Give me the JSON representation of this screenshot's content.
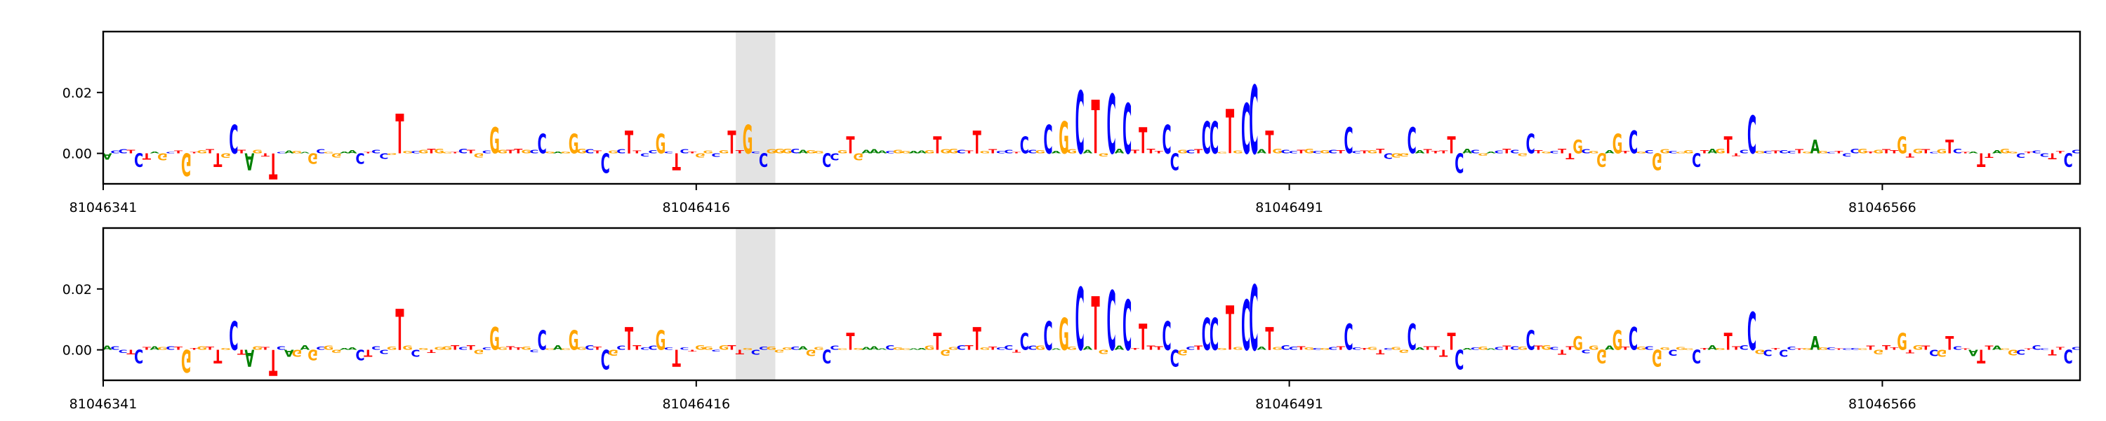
{
  "chart_data": [
    {
      "type": "sequence-logo",
      "ylim": [
        -0.01,
        0.04
      ],
      "yticks": [
        {
          "value": 0.02,
          "label": "0.02"
        },
        {
          "value": 0.0,
          "label": "0.00"
        }
      ],
      "xlim": [
        81046341,
        81046591
      ],
      "xticks": [
        {
          "value": 81046341,
          "label": "81046341"
        },
        {
          "value": 81046416,
          "label": "81046416"
        },
        {
          "value": 81046491,
          "label": "81046491"
        },
        {
          "value": 81046566,
          "label": "81046566"
        }
      ],
      "highlight": [
        81046421,
        81046426
      ],
      "sequence": "ACCTCTAGCTGTGTTGCTAGTTCAGAGCGGAACTCCGTGCGTGGTCTGCGGTTGCCGAGGGCTCGCTTCCGCTCTGGCGTTGCCGGGCAGGCCGTGAAACGGAAGTGGCTTGTCCTCCGCAGGCATGCACTTTTCCGCTCCGTGCCATGCCTGCGCTCCTGTCGGCATTTTCACGACTCGCTGCTTGCGGAGTCGCGGCGGCTAGTTCCGCTCCTGAGCTCCGTGTTGTGTCGTCTATTAGGCTCCTTCC",
      "features": [
        {
          "pos": 81046345,
          "height": -0.0045
        },
        {
          "pos": 81046351,
          "height": -0.0075
        },
        {
          "pos": 81046355,
          "height": -0.0045
        },
        {
          "pos": 81046357,
          "height": 0.0095
        },
        {
          "pos": 81046359,
          "height": -0.0055
        },
        {
          "pos": 81046362,
          "height": -0.0085
        },
        {
          "pos": 81046367,
          "height": -0.0035
        },
        {
          "pos": 81046373,
          "height": -0.0035
        },
        {
          "pos": 81046378,
          "height": 0.013
        },
        {
          "pos": 81046390,
          "height": 0.0085
        },
        {
          "pos": 81046396,
          "height": 0.0065
        },
        {
          "pos": 81046400,
          "height": 0.0065
        },
        {
          "pos": 81046404,
          "height": -0.0065
        },
        {
          "pos": 81046407,
          "height": 0.0075
        },
        {
          "pos": 81046411,
          "height": 0.0065
        },
        {
          "pos": 81046413,
          "height": -0.0055
        },
        {
          "pos": 81046420,
          "height": 0.0075
        },
        {
          "pos": 81046422,
          "height": 0.0095
        },
        {
          "pos": 81046424,
          "height": -0.0045
        },
        {
          "pos": 81046432,
          "height": -0.0045
        },
        {
          "pos": 81046435,
          "height": 0.0055
        },
        {
          "pos": 81046446,
          "height": 0.0055
        },
        {
          "pos": 81046451,
          "height": 0.0075
        },
        {
          "pos": 81046457,
          "height": 0.0055
        },
        {
          "pos": 81046460,
          "height": 0.0095
        },
        {
          "pos": 81046462,
          "height": 0.0105
        },
        {
          "pos": 81046464,
          "height": 0.0205
        },
        {
          "pos": 81046466,
          "height": 0.0175
        },
        {
          "pos": 81046468,
          "height": 0.0195
        },
        {
          "pos": 81046470,
          "height": 0.0165
        },
        {
          "pos": 81046472,
          "height": 0.0085
        },
        {
          "pos": 81046475,
          "height": 0.0095
        },
        {
          "pos": 81046476,
          "height": -0.0055
        },
        {
          "pos": 81046480,
          "height": 0.0105
        },
        {
          "pos": 81046481,
          "height": 0.0105
        },
        {
          "pos": 81046483,
          "height": 0.0145
        },
        {
          "pos": 81046485,
          "height": 0.0165
        },
        {
          "pos": 81046486,
          "height": 0.0225
        },
        {
          "pos": 81046488,
          "height": 0.0075
        },
        {
          "pos": 81046498,
          "height": 0.0085
        },
        {
          "pos": 81046506,
          "height": 0.0085
        },
        {
          "pos": 81046511,
          "height": 0.0055
        },
        {
          "pos": 81046512,
          "height": -0.0065
        },
        {
          "pos": 81046521,
          "height": 0.0065
        },
        {
          "pos": 81046527,
          "height": 0.0045
        },
        {
          "pos": 81046530,
          "height": -0.0045
        },
        {
          "pos": 81046532,
          "height": 0.0065
        },
        {
          "pos": 81046534,
          "height": 0.0075
        },
        {
          "pos": 81046537,
          "height": -0.0055
        },
        {
          "pos": 81046542,
          "height": -0.0045
        },
        {
          "pos": 81046546,
          "height": 0.0055
        },
        {
          "pos": 81046549,
          "height": 0.0125
        },
        {
          "pos": 81046557,
          "height": 0.0045
        },
        {
          "pos": 81046568,
          "height": 0.0055
        },
        {
          "pos": 81046574,
          "height": 0.0045
        },
        {
          "pos": 81046578,
          "height": -0.0045
        },
        {
          "pos": 81046589,
          "height": -0.0045
        }
      ]
    },
    {
      "type": "sequence-logo",
      "ylim": [
        -0.01,
        0.04
      ],
      "yticks": [
        {
          "value": 0.02,
          "label": "0.02"
        },
        {
          "value": 0.0,
          "label": "0.00"
        }
      ],
      "xlim": [
        81046341,
        81046591
      ],
      "xticks": [
        {
          "value": 81046341,
          "label": "81046341"
        },
        {
          "value": 81046416,
          "label": "81046416"
        },
        {
          "value": 81046491,
          "label": "81046491"
        },
        {
          "value": 81046566,
          "label": "81046566"
        }
      ],
      "highlight": [
        81046421,
        81046426
      ],
      "sequence": "ACCTCTAGCTGTGTTGCTAGTTCAGAGCGGAACTCCGTGCGTGGTCTGCGGTTGCCGAGGGCTCGCTTCCGCTCTGGCGTTGCCGGGCAGGCCGTGAAACGGAAGTGGCTTGTCCTCCGCAGGCATGCACTTTTCCGCTCCGTGCCATGCCTGCGCTCCTGTCGGCATTTTCACGACTCGCTGCTTGCGGAGTCGCGGCGGCTAGTTCCGCTCCTGAGCTCCGTGTTGTGTCGTCTATTAGGCTCCTTCC",
      "features": [
        {
          "pos": 81046345,
          "height": -0.0045
        },
        {
          "pos": 81046351,
          "height": -0.0075
        },
        {
          "pos": 81046355,
          "height": -0.0045
        },
        {
          "pos": 81046357,
          "height": 0.0095
        },
        {
          "pos": 81046359,
          "height": -0.0055
        },
        {
          "pos": 81046362,
          "height": -0.0085
        },
        {
          "pos": 81046367,
          "height": -0.0035
        },
        {
          "pos": 81046373,
          "height": -0.0035
        },
        {
          "pos": 81046378,
          "height": 0.0135
        },
        {
          "pos": 81046390,
          "height": 0.0075
        },
        {
          "pos": 81046396,
          "height": 0.0065
        },
        {
          "pos": 81046400,
          "height": 0.0065
        },
        {
          "pos": 81046404,
          "height": -0.0065
        },
        {
          "pos": 81046407,
          "height": 0.0075
        },
        {
          "pos": 81046411,
          "height": 0.0065
        },
        {
          "pos": 81046413,
          "height": -0.0055
        },
        {
          "pos": 81046432,
          "height": -0.0045
        },
        {
          "pos": 81046435,
          "height": 0.0055
        },
        {
          "pos": 81046446,
          "height": 0.0055
        },
        {
          "pos": 81046451,
          "height": 0.0075
        },
        {
          "pos": 81046457,
          "height": 0.0055
        },
        {
          "pos": 81046460,
          "height": 0.0095
        },
        {
          "pos": 81046462,
          "height": 0.0105
        },
        {
          "pos": 81046464,
          "height": 0.0205
        },
        {
          "pos": 81046466,
          "height": 0.0175
        },
        {
          "pos": 81046468,
          "height": 0.0195
        },
        {
          "pos": 81046470,
          "height": 0.0165
        },
        {
          "pos": 81046472,
          "height": 0.0085
        },
        {
          "pos": 81046475,
          "height": 0.0095
        },
        {
          "pos": 81046476,
          "height": -0.0055
        },
        {
          "pos": 81046480,
          "height": 0.0105
        },
        {
          "pos": 81046481,
          "height": 0.0105
        },
        {
          "pos": 81046483,
          "height": 0.0145
        },
        {
          "pos": 81046485,
          "height": 0.0165
        },
        {
          "pos": 81046486,
          "height": 0.0215
        },
        {
          "pos": 81046488,
          "height": 0.0075
        },
        {
          "pos": 81046498,
          "height": 0.0085
        },
        {
          "pos": 81046506,
          "height": 0.0085
        },
        {
          "pos": 81046511,
          "height": 0.0055
        },
        {
          "pos": 81046512,
          "height": -0.0065
        },
        {
          "pos": 81046521,
          "height": 0.0065
        },
        {
          "pos": 81046527,
          "height": 0.0045
        },
        {
          "pos": 81046530,
          "height": -0.0045
        },
        {
          "pos": 81046532,
          "height": 0.0065
        },
        {
          "pos": 81046534,
          "height": 0.0075
        },
        {
          "pos": 81046537,
          "height": -0.0055
        },
        {
          "pos": 81046542,
          "height": -0.0045
        },
        {
          "pos": 81046546,
          "height": 0.0055
        },
        {
          "pos": 81046549,
          "height": 0.0125
        },
        {
          "pos": 81046557,
          "height": 0.0045
        },
        {
          "pos": 81046568,
          "height": 0.0055
        },
        {
          "pos": 81046574,
          "height": 0.0045
        },
        {
          "pos": 81046578,
          "height": -0.0045
        },
        {
          "pos": 81046589,
          "height": -0.0045
        }
      ]
    }
  ],
  "colors": {
    "A": "#008000",
    "C": "#0000ff",
    "G": "#ffa500",
    "T": "#ff0000",
    "highlight": "#d9d9d9"
  }
}
